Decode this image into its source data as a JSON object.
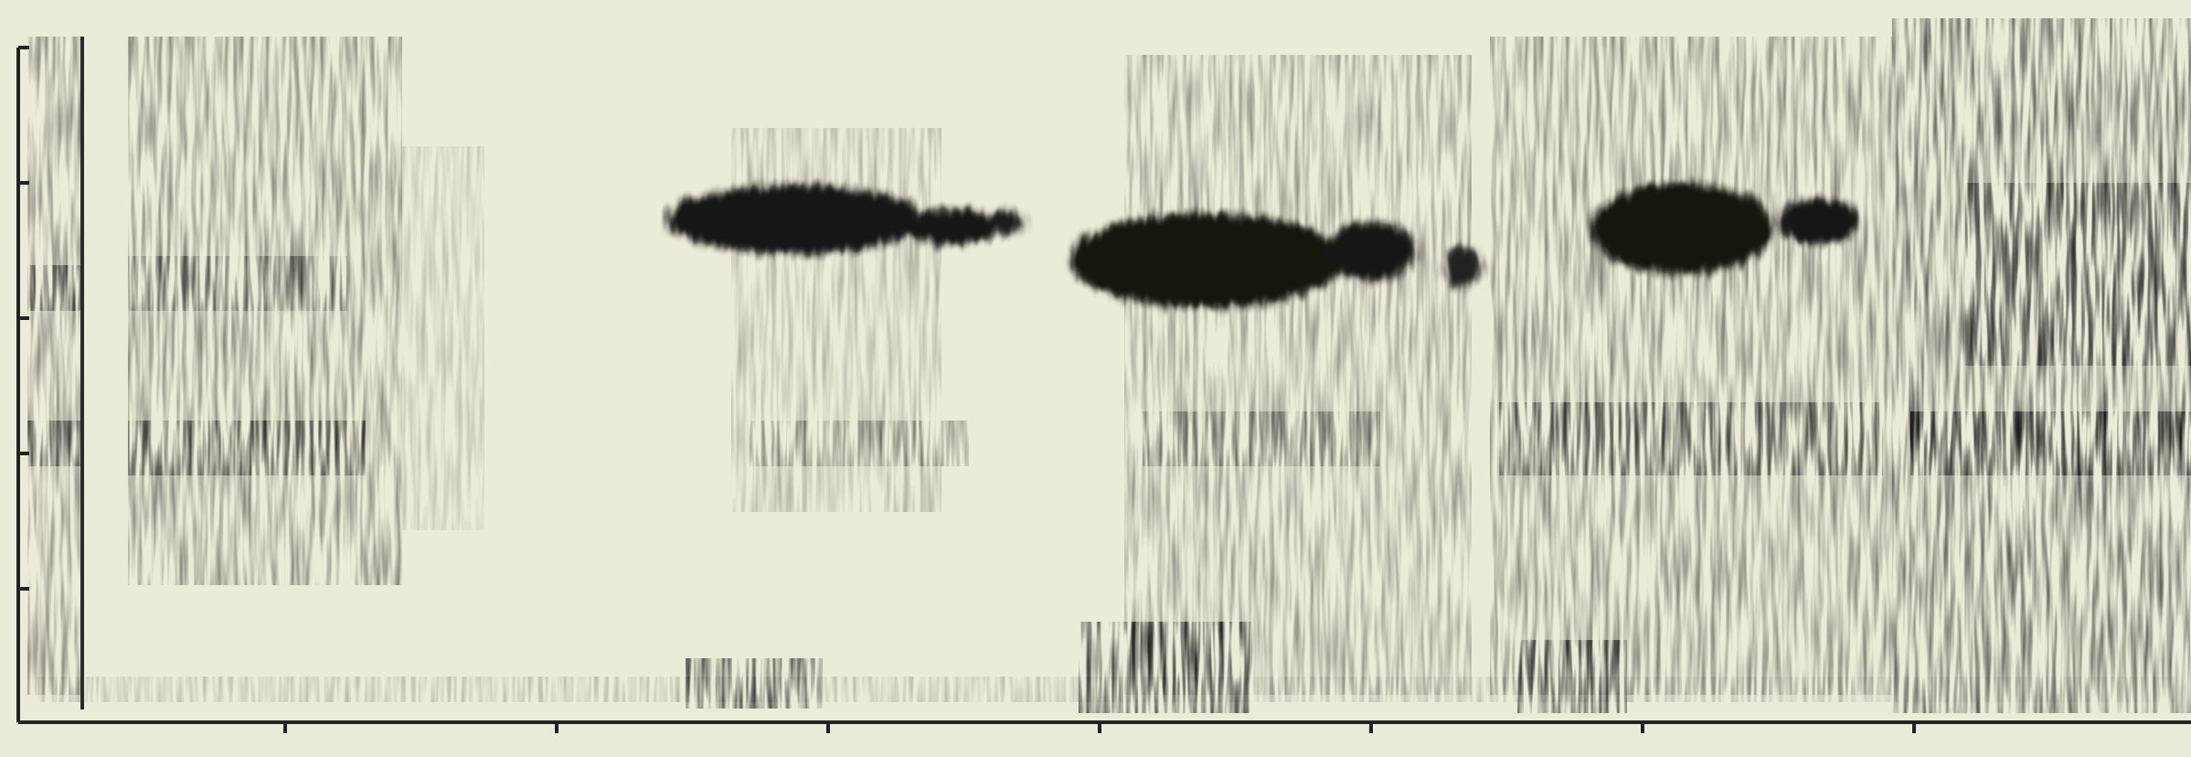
{
  "figure": {
    "kind": "spectrogram",
    "colors": {
      "paper": "#ecead8",
      "ink": "#161616"
    },
    "y_axis": {
      "tick_count": 5,
      "tick_labels": []
    },
    "x_axis": {
      "tick_count": 7,
      "tick_labels": []
    }
  }
}
